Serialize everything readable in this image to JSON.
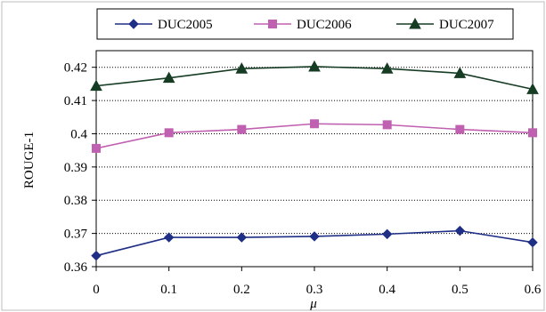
{
  "chart_data": {
    "type": "line",
    "title": "",
    "xlabel": "μ",
    "ylabel": "ROUGE-1",
    "x": [
      0,
      0.1,
      0.2,
      0.3,
      0.4,
      0.5,
      0.6
    ],
    "x_tick_labels": [
      "0",
      "0.1",
      "0.2",
      "0.3",
      "0.4",
      "0.5",
      "0.6"
    ],
    "xlim": [
      0,
      0.6
    ],
    "ylim": [
      0.36,
      0.425
    ],
    "y_ticks": [
      0.36,
      0.37,
      0.38,
      0.39,
      0.4,
      0.41,
      0.42
    ],
    "y_tick_labels": [
      "0.36",
      "0.37",
      "0.38",
      "0.39",
      "0.4",
      "0.41",
      "0.42"
    ],
    "grid": "horizontal dotted",
    "legend_position": "top",
    "series": [
      {
        "name": "DUC2005",
        "marker": "diamond",
        "color": "#1f2f86",
        "values": [
          0.3633,
          0.3688,
          0.3688,
          0.3691,
          0.3698,
          0.3708,
          0.3673
        ]
      },
      {
        "name": "DUC2006",
        "marker": "square",
        "color": "#c060b0",
        "values": [
          0.3956,
          0.4003,
          0.4013,
          0.403,
          0.4027,
          0.4013,
          0.4003
        ]
      },
      {
        "name": "DUC2007",
        "marker": "triangle",
        "color": "#173c24",
        "values": [
          0.4144,
          0.4168,
          0.4196,
          0.4202,
          0.4196,
          0.4182,
          0.4134
        ]
      }
    ]
  }
}
